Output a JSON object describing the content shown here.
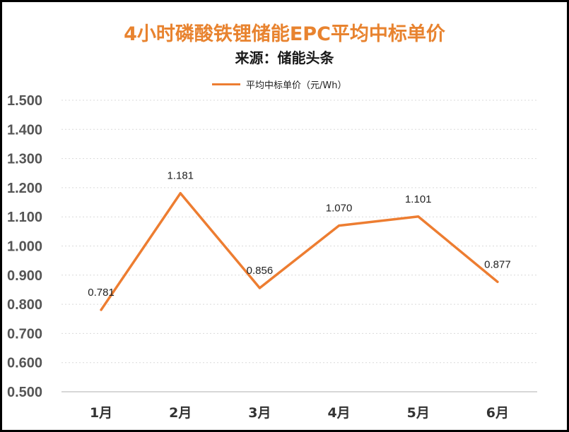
{
  "chart_data": {
    "type": "line",
    "title": "4小时磷酸铁锂储能EPC平均中标单价",
    "subtitle": "来源：储能头条",
    "categories": [
      "1月",
      "2月",
      "3月",
      "4月",
      "5月",
      "6月"
    ],
    "series": [
      {
        "name": "平均中标单价（元/Wh）",
        "values": [
          0.781,
          1.181,
          0.856,
          1.07,
          1.101,
          0.877
        ],
        "color": "#ED7D31"
      }
    ],
    "data_labels": [
      "0.781",
      "1.181",
      "0.856",
      "1.070",
      "1.101",
      "0.877"
    ],
    "ylim": [
      0.5,
      1.5
    ],
    "yticks": [
      0.5,
      0.6,
      0.7,
      0.8,
      0.9,
      1.0,
      1.1,
      1.2,
      1.3,
      1.4,
      1.5
    ],
    "ytick_labels": [
      "0.500",
      "0.600",
      "0.700",
      "0.800",
      "0.900",
      "1.000",
      "1.100",
      "1.200",
      "1.300",
      "1.400",
      "1.500"
    ],
    "grid": true,
    "legend_position": "top-center",
    "title_color": "#E8832F"
  }
}
